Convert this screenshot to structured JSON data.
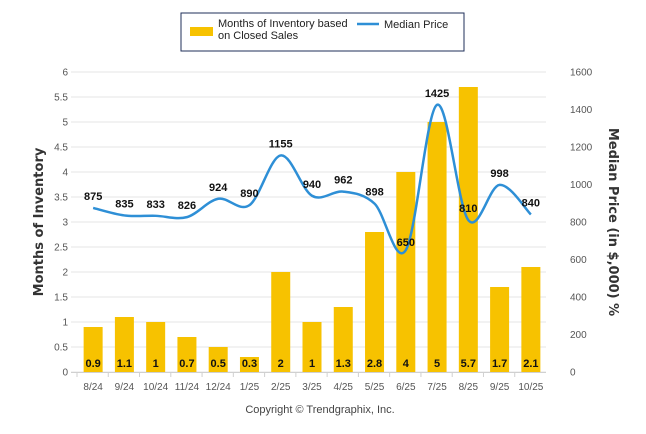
{
  "chart_data": {
    "type": "bar+line",
    "categories": [
      "8/24",
      "9/24",
      "10/24",
      "11/24",
      "12/24",
      "1/25",
      "2/25",
      "3/25",
      "4/25",
      "5/25",
      "6/25",
      "7/25",
      "8/25",
      "9/25",
      "10/25"
    ],
    "series": [
      {
        "name": "Months of Inventory based on Closed Sales",
        "type": "bar",
        "axis": "left",
        "color": "#F7C200",
        "values": [
          0.9,
          1.1,
          1,
          0.7,
          0.5,
          0.3,
          2,
          1,
          1.3,
          2.8,
          4,
          5,
          5.7,
          1.7,
          2.1
        ],
        "labels": [
          "0.9",
          "1.1",
          "1",
          "0.7",
          "0.5",
          "0.3",
          "2",
          "1",
          "1.3",
          "2.8",
          "4",
          "5",
          "5.7",
          "1.7",
          "2.1"
        ]
      },
      {
        "name": "Median Price",
        "type": "line",
        "axis": "right",
        "color": "#2E8FD6",
        "values": [
          875,
          835,
          833,
          826,
          924,
          890,
          1155,
          940,
          962,
          898,
          650,
          1425,
          810,
          998,
          840
        ],
        "labels": [
          "875",
          "835",
          "833",
          "826",
          "924",
          "890",
          "1155",
          "940",
          "962",
          "898",
          "650",
          "1425",
          "810",
          "998",
          "840"
        ]
      }
    ],
    "left_axis": {
      "title": "Months of Inventory",
      "range": [
        0,
        6
      ],
      "ticks": [
        "0",
        "0.5",
        "1",
        "1.5",
        "2",
        "2.5",
        "3",
        "3.5",
        "4",
        "4.5",
        "5",
        "5.5",
        "6"
      ]
    },
    "right_axis": {
      "title": "Median Price (in $,000) %",
      "range": [
        0,
        1600
      ],
      "ticks": [
        "0",
        "200",
        "400",
        "600",
        "800",
        "1000",
        "1200",
        "1400",
        "1600"
      ]
    },
    "grid": true,
    "legend": {
      "placement": "top-center",
      "entries": [
        "Months of Inventory based",
        "on Closed Sales",
        "Median Price"
      ]
    },
    "credit": "Copyright © Trendgraphix, Inc."
  }
}
